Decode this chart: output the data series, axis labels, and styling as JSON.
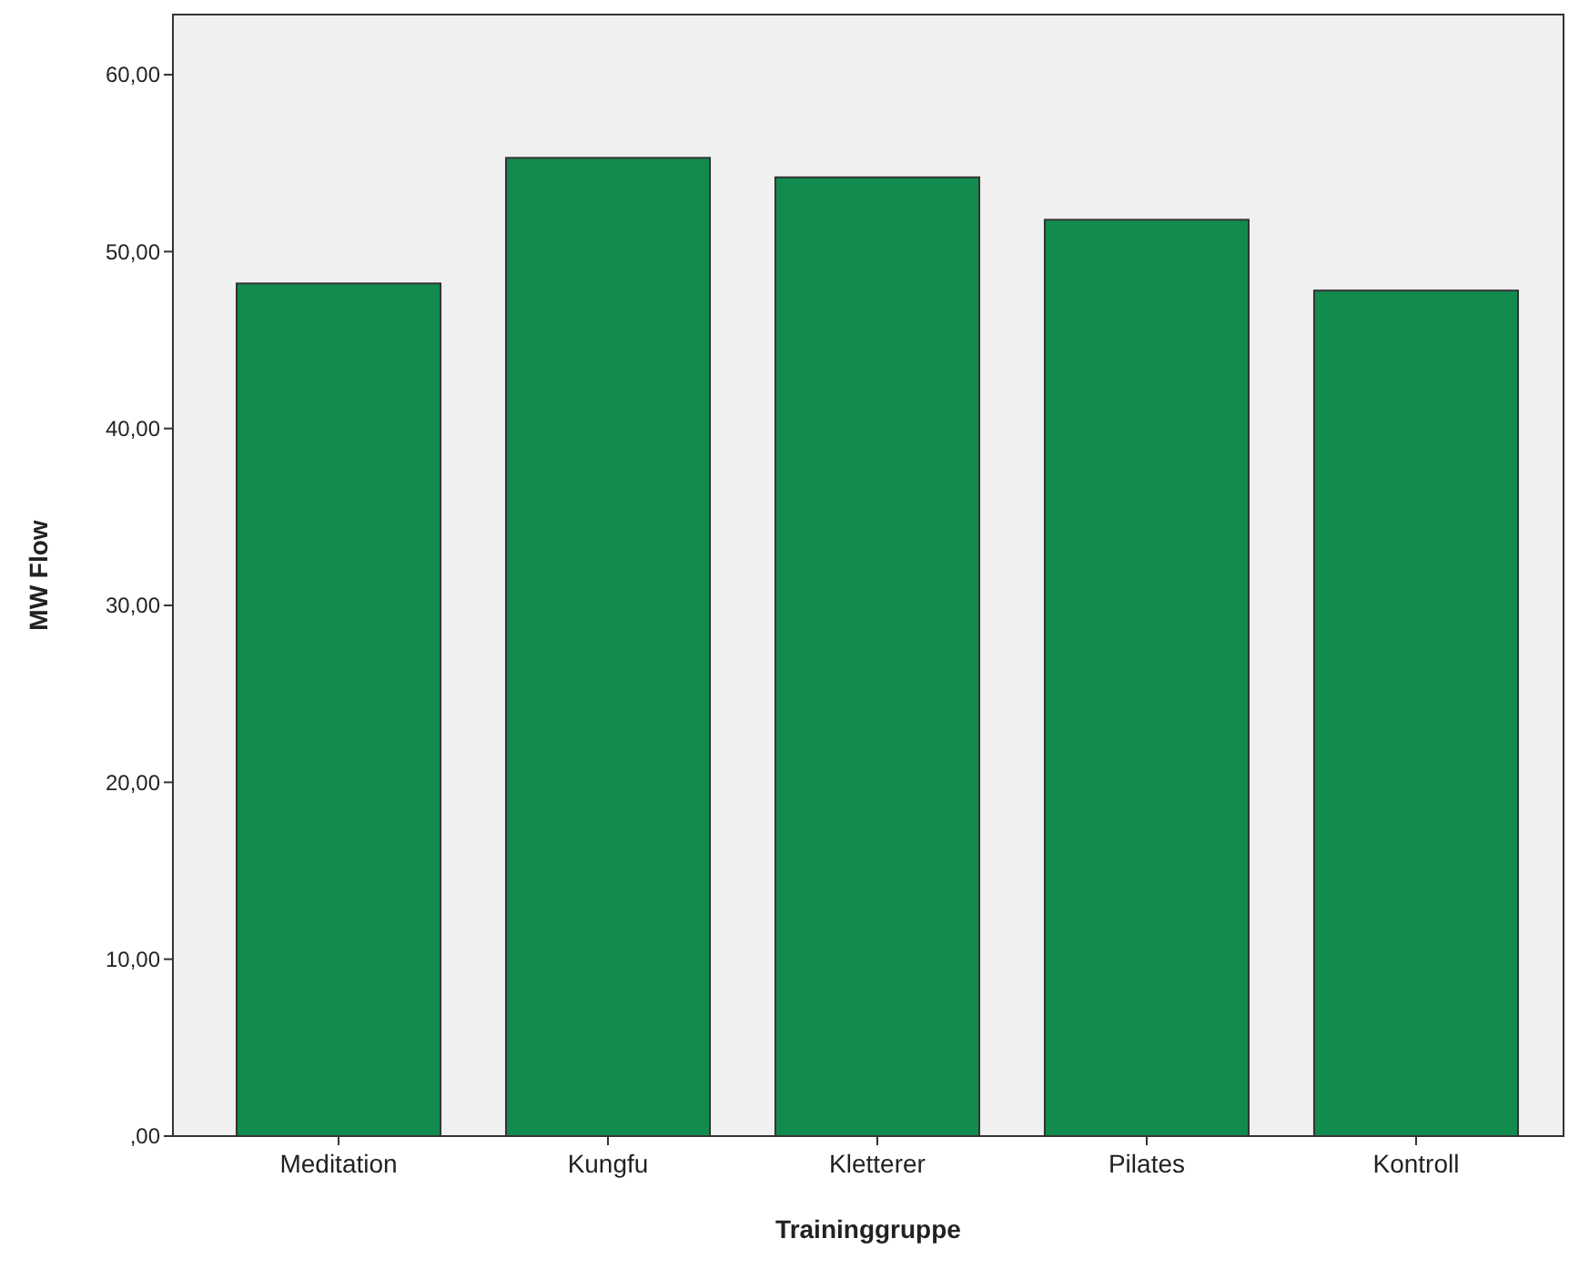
{
  "chart_data": {
    "type": "bar",
    "xlabel": "Traininggruppe",
    "ylabel": "MW Flow",
    "categories": [
      "Meditation",
      "Kungfu",
      "Kletterer",
      "Pilates",
      "Kontroll"
    ],
    "values": [
      48.2,
      55.3,
      54.2,
      51.8,
      47.8
    ],
    "color": "#118c4e",
    "ylim": [
      0,
      63.4
    ],
    "yticks": [
      {
        "value": 0,
        "label": ",00"
      },
      {
        "value": 10,
        "label": "10,00"
      },
      {
        "value": 20,
        "label": "20,00"
      },
      {
        "value": 30,
        "label": "30,00"
      },
      {
        "value": 40,
        "label": "40,00"
      },
      {
        "value": 50,
        "label": "50,00"
      },
      {
        "value": 60,
        "label": "60,00"
      }
    ],
    "grid": false
  }
}
